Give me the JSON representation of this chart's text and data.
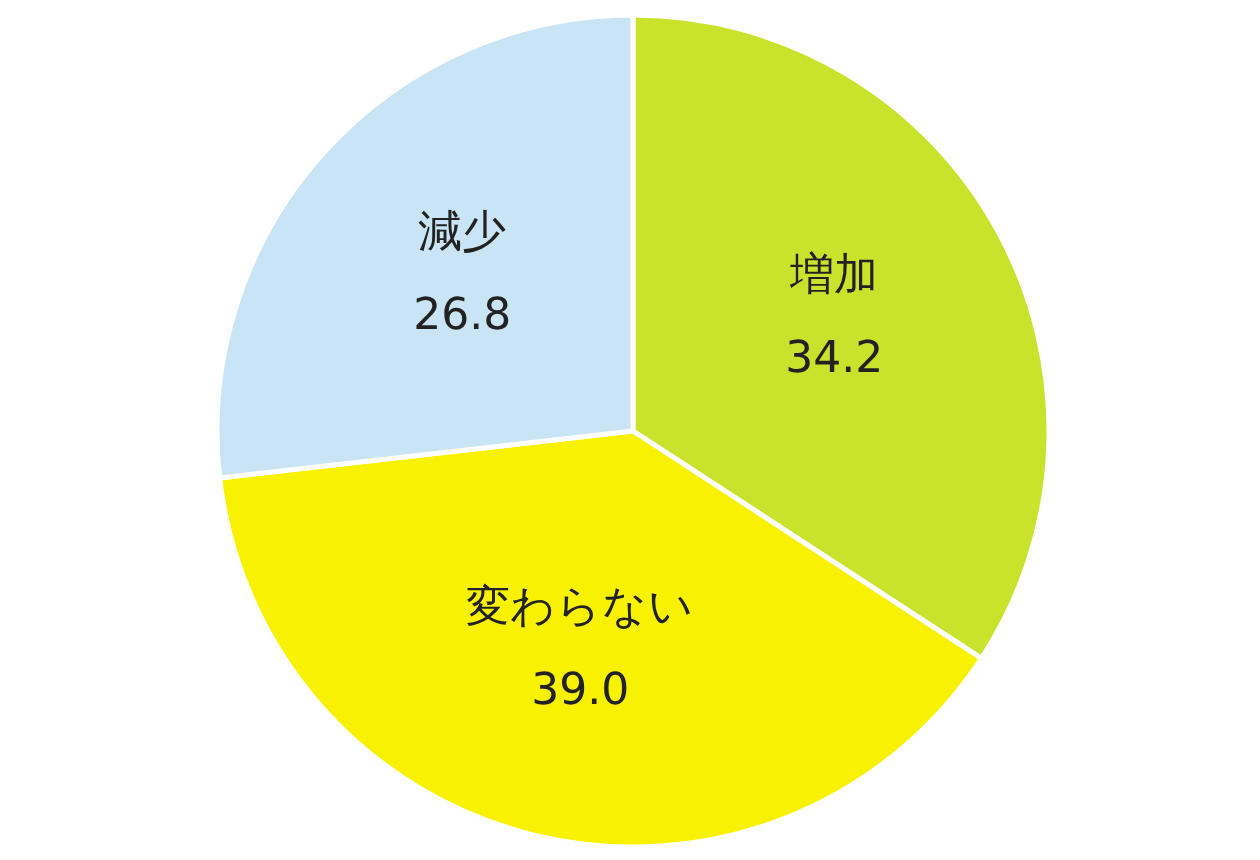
{
  "chart_data": {
    "type": "pie",
    "categories": [
      "増加",
      "変わらない",
      "減少"
    ],
    "values": [
      34.2,
      39.0,
      26.8
    ],
    "colors": [
      "#c9e22c",
      "#f8f200",
      "#c9e4f5"
    ],
    "value_labels": [
      "34.2",
      "39.0",
      "26.8"
    ]
  }
}
